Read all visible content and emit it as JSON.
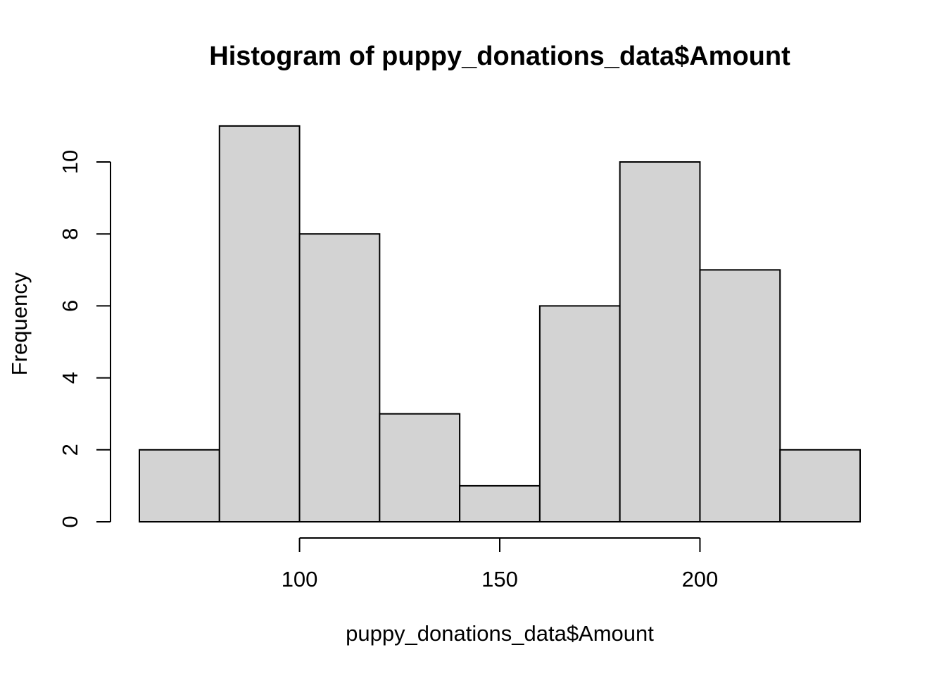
{
  "chart_data": {
    "type": "bar",
    "subtype": "histogram",
    "title": "Histogram of puppy_donations_data$Amount",
    "xlabel": "puppy_donations_data$Amount",
    "ylabel": "Frequency",
    "bins": [
      {
        "start": 60,
        "end": 80,
        "count": 2
      },
      {
        "start": 80,
        "end": 100,
        "count": 11
      },
      {
        "start": 100,
        "end": 120,
        "count": 8
      },
      {
        "start": 120,
        "end": 140,
        "count": 3
      },
      {
        "start": 140,
        "end": 160,
        "count": 1
      },
      {
        "start": 160,
        "end": 180,
        "count": 6
      },
      {
        "start": 180,
        "end": 200,
        "count": 10
      },
      {
        "start": 200,
        "end": 220,
        "count": 7
      },
      {
        "start": 220,
        "end": 240,
        "count": 2
      }
    ],
    "xlim": [
      60,
      240
    ],
    "ylim": [
      0,
      11
    ],
    "x_ticks": [
      100,
      150,
      200
    ],
    "y_ticks": [
      0,
      2,
      4,
      6,
      8,
      10
    ],
    "bar_color": "#d3d3d3",
    "grid": false,
    "legend": "none"
  }
}
